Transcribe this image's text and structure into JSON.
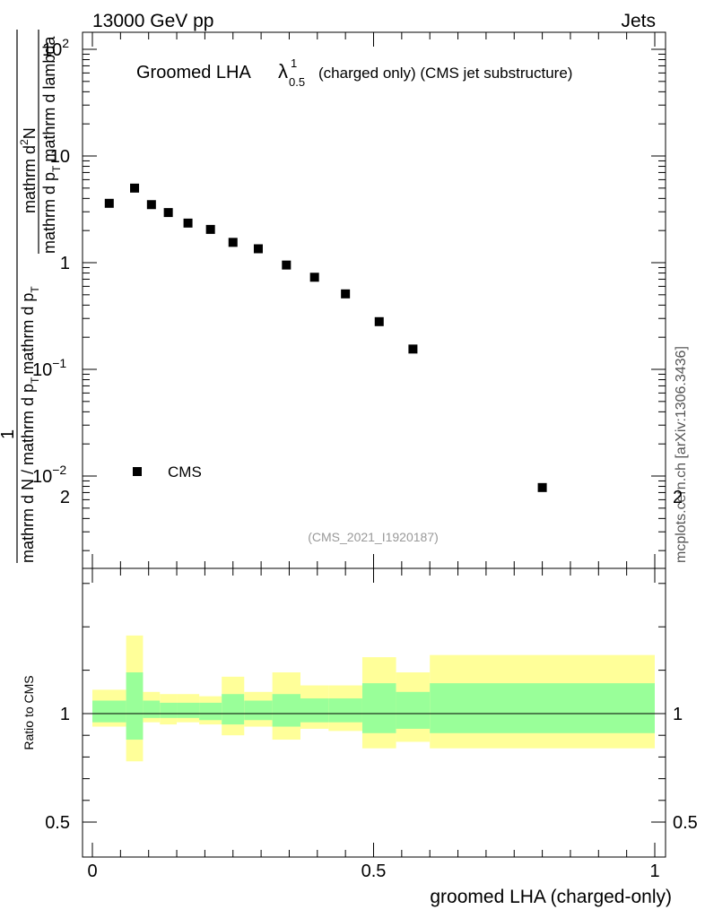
{
  "header": {
    "left": "13000 GeV pp",
    "right": "Jets"
  },
  "side_label": "mcplots.cern.ch [arXiv:1306.3436]",
  "analysis_tag": "(CMS_2021_I1920187)",
  "chart_data": [
    {
      "type": "scatter",
      "title_prefix": "Groomed LHA",
      "title_symbol": "λ",
      "title_sup": "1",
      "title_sub": "0.5",
      "title_suffix": "(charged only) (CMS jet substructure)",
      "ylabel": {
        "numerator_top": "mathrm d²N",
        "numerator_bottom": "mathrm d p_T mathrm d lambda",
        "denominator": "mathrm d N / mathrm d p_T mathrm d p_T",
        "one": "1"
      },
      "ylabel_lines": {
        "one": "1",
        "den": "mathrm d N / mathrm d p",
        "den_sub": "T",
        "den_tail": "mathrm d p",
        "den_tail_sub": "T",
        "num_top": "mathrm d",
        "num_top_sup": "2",
        "num_top_tail": "N",
        "num_bottom": "mathrm d p",
        "num_bottom_sub": "T",
        "num_bottom_tail": "mathrm d lambda"
      },
      "yscale": "log",
      "ylim": [
        0.001,
        150
      ],
      "xlim": [
        -0.02,
        1.02
      ],
      "grid": false,
      "y_ticks": [
        {
          "value": 100,
          "base": "10",
          "exp": "2"
        },
        {
          "value": 10,
          "base": "10",
          "exp": ""
        },
        {
          "value": 1,
          "base": "1",
          "exp": ""
        },
        {
          "value": 0.1,
          "base": "10",
          "exp": "−1"
        },
        {
          "value": 0.01,
          "base": "10",
          "exp": "−2"
        }
      ],
      "series": [
        {
          "name": "CMS",
          "color": "#000000",
          "marker": "square",
          "x": [
            0.03,
            0.075,
            0.105,
            0.135,
            0.17,
            0.21,
            0.25,
            0.295,
            0.345,
            0.395,
            0.45,
            0.51,
            0.57,
            0.8
          ],
          "y": [
            3.6,
            5.0,
            3.5,
            2.95,
            2.35,
            2.05,
            1.55,
            1.35,
            0.95,
            0.73,
            0.51,
            0.28,
            0.155,
            0.0078
          ]
        }
      ],
      "legend": {
        "position": "left",
        "label": "CMS"
      }
    },
    {
      "type": "area",
      "ylabel": "Ratio to CMS",
      "xlabel": "groomed LHA (charged-only)",
      "ylim": [
        0.4,
        2.4
      ],
      "x_ticks": [
        "0",
        "0.5",
        "1"
      ],
      "x_tick_values": [
        0,
        0.5,
        1
      ],
      "y_ticks": [
        "0.5",
        "1",
        "2"
      ],
      "y_tick_values": [
        0.5,
        1,
        2
      ],
      "reference_line": 1,
      "colors": {
        "inner": "#99ff99",
        "outer": "#ffff99"
      },
      "bins": [
        {
          "lo": 0.0,
          "hi": 0.06,
          "inner": [
            0.96,
            1.06
          ],
          "outer": [
            0.94,
            1.11
          ]
        },
        {
          "lo": 0.06,
          "hi": 0.09,
          "inner": [
            0.88,
            1.19
          ],
          "outer": [
            0.78,
            1.36
          ]
        },
        {
          "lo": 0.09,
          "hi": 0.12,
          "inner": [
            0.98,
            1.06
          ],
          "outer": [
            0.96,
            1.1
          ]
        },
        {
          "lo": 0.12,
          "hi": 0.15,
          "inner": [
            0.98,
            1.05
          ],
          "outer": [
            0.95,
            1.09
          ]
        },
        {
          "lo": 0.15,
          "hi": 0.19,
          "inner": [
            0.98,
            1.05
          ],
          "outer": [
            0.96,
            1.09
          ]
        },
        {
          "lo": 0.19,
          "hi": 0.23,
          "inner": [
            0.97,
            1.05
          ],
          "outer": [
            0.95,
            1.08
          ]
        },
        {
          "lo": 0.23,
          "hi": 0.27,
          "inner": [
            0.95,
            1.09
          ],
          "outer": [
            0.9,
            1.17
          ]
        },
        {
          "lo": 0.27,
          "hi": 0.32,
          "inner": [
            0.97,
            1.06
          ],
          "outer": [
            0.94,
            1.1
          ]
        },
        {
          "lo": 0.32,
          "hi": 0.37,
          "inner": [
            0.94,
            1.09
          ],
          "outer": [
            0.88,
            1.19
          ]
        },
        {
          "lo": 0.37,
          "hi": 0.42,
          "inner": [
            0.96,
            1.07
          ],
          "outer": [
            0.93,
            1.13
          ]
        },
        {
          "lo": 0.42,
          "hi": 0.48,
          "inner": [
            0.96,
            1.07
          ],
          "outer": [
            0.92,
            1.13
          ]
        },
        {
          "lo": 0.48,
          "hi": 0.54,
          "inner": [
            0.91,
            1.14
          ],
          "outer": [
            0.84,
            1.26
          ]
        },
        {
          "lo": 0.54,
          "hi": 0.6,
          "inner": [
            0.93,
            1.1
          ],
          "outer": [
            0.87,
            1.19
          ]
        },
        {
          "lo": 0.6,
          "hi": 1.0,
          "inner": [
            0.91,
            1.14
          ],
          "outer": [
            0.84,
            1.27
          ]
        }
      ]
    }
  ]
}
